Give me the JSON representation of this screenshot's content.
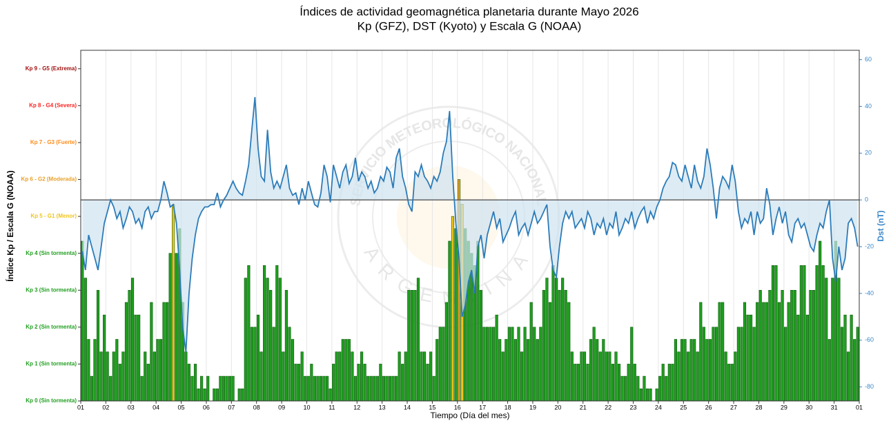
{
  "chart_data": {
    "type": "combo",
    "title": "Índices de actividad geomagnética planetaria durante Mayo 2026",
    "subtitle": "Kp (GFZ), DST (Kyoto) y Escala G (NOAA)",
    "xlabel": "Tiempo (Día del mes)",
    "ylabel": "Índice Kp / Escala G (NOAA)",
    "y2label": "Dst (nT)",
    "watermark": [
      "SERVICIO METEOROLÓGICO NACIONAL",
      "ARGENTINA"
    ],
    "xlim": [
      0,
      31
    ],
    "xticks": [
      {
        "value": 0,
        "label": "01"
      },
      {
        "value": 1,
        "label": "02"
      },
      {
        "value": 2,
        "label": "03"
      },
      {
        "value": 3,
        "label": "04"
      },
      {
        "value": 4,
        "label": "05"
      },
      {
        "value": 5,
        "label": "06"
      },
      {
        "value": 6,
        "label": "07"
      },
      {
        "value": 7,
        "label": "08"
      },
      {
        "value": 8,
        "label": "09"
      },
      {
        "value": 9,
        "label": "10"
      },
      {
        "value": 10,
        "label": "11"
      },
      {
        "value": 11,
        "label": "12"
      },
      {
        "value": 12,
        "label": "13"
      },
      {
        "value": 13,
        "label": "14"
      },
      {
        "value": 14,
        "label": "15"
      },
      {
        "value": 15,
        "label": "16"
      },
      {
        "value": 16,
        "label": "17"
      },
      {
        "value": 17,
        "label": "18"
      },
      {
        "value": 18,
        "label": "19"
      },
      {
        "value": 19,
        "label": "20"
      },
      {
        "value": 20,
        "label": "21"
      },
      {
        "value": 21,
        "label": "22"
      },
      {
        "value": 22,
        "label": "23"
      },
      {
        "value": 23,
        "label": "24"
      },
      {
        "value": 24,
        "label": "25"
      },
      {
        "value": 25,
        "label": "26"
      },
      {
        "value": 26,
        "label": "27"
      },
      {
        "value": 27,
        "label": "28"
      },
      {
        "value": 28,
        "label": "29"
      },
      {
        "value": 29,
        "label": "30"
      },
      {
        "value": 30,
        "label": "31"
      },
      {
        "value": 31,
        "label": "01"
      }
    ],
    "ylim": [
      0,
      9.5
    ],
    "yticks": [
      {
        "value": 0,
        "label": "Kp 0 (Sin tormenta)",
        "color": "#1f9e1f"
      },
      {
        "value": 1,
        "label": "Kp 1 (Sin tormenta)",
        "color": "#1f9e1f"
      },
      {
        "value": 2,
        "label": "Kp 2 (Sin tormenta)",
        "color": "#1f9e1f"
      },
      {
        "value": 3,
        "label": "Kp 3 (Sin tormenta)",
        "color": "#1f9e1f"
      },
      {
        "value": 4,
        "label": "Kp 4 (Sin tormenta)",
        "color": "#1f9e1f"
      },
      {
        "value": 5,
        "label": "Kp 5 - G1 (Menor)",
        "color": "#f0c419"
      },
      {
        "value": 6,
        "label": "Kp 6 - G2 (Moderada)",
        "color": "#e8a02a"
      },
      {
        "value": 7,
        "label": "Kp 7 - G3 (Fuerte)",
        "color": "#ff8c1a"
      },
      {
        "value": 8,
        "label": "Kp 8 - G4 (Severa)",
        "color": "#ff2222"
      },
      {
        "value": 9,
        "label": "Kp 9 - G5 (Extrema)",
        "color": "#a01010"
      }
    ],
    "y2lim": [
      -86,
      64
    ],
    "y2ticks": [
      -80,
      -60,
      -40,
      -20,
      0,
      20,
      40,
      60
    ],
    "y2color": "#3a87c8",
    "grid": true,
    "series": [
      {
        "type": "bar",
        "edgecolor": "#0d5a0d",
        "values": [
          4.33,
          3.33,
          1.67,
          0.67,
          1.67,
          3,
          1.33,
          2.33,
          1.33,
          0.67,
          1.33,
          1.67,
          1,
          1.33,
          2.67,
          3,
          3.33,
          2.33,
          2.33,
          0.67,
          1.33,
          1,
          2.67,
          1.33,
          1.67,
          1.67,
          2.67,
          2.67,
          4,
          5.33,
          4,
          4.67,
          2.67,
          1.33,
          1,
          0.67,
          1,
          0.33,
          0.67,
          0.33,
          0.67,
          0,
          0.33,
          0.33,
          0.67,
          0.67,
          0.67,
          0.67,
          0.67,
          0,
          0.33,
          0.33,
          3.33,
          3.67,
          2,
          2,
          2.33,
          1.33,
          3.67,
          3.33,
          3,
          2,
          3.67,
          3.33,
          1.33,
          3,
          2,
          1.67,
          1,
          1,
          1.33,
          0.67,
          0.67,
          1,
          0.67,
          0.67,
          0.67,
          0.67,
          0.67,
          0.33,
          1,
          1.33,
          1.33,
          1.67,
          1.67,
          1.67,
          1.33,
          0.67,
          1,
          1.33,
          1,
          0.67,
          0.67,
          0.67,
          0.67,
          1,
          0.67,
          0.67,
          0.67,
          0.67,
          0.67,
          1.33,
          1,
          1.33,
          3,
          3,
          3,
          3.33,
          1.33,
          1.33,
          1,
          1.33,
          0.67,
          1.67,
          2,
          2,
          2.67,
          4.33,
          5,
          4.67,
          6,
          5.33,
          4.67,
          4.33,
          4,
          3.67,
          4.33,
          3,
          2,
          2,
          2,
          2,
          2.33,
          1.67,
          1.33,
          1.67,
          2,
          2,
          1.67,
          2,
          1.33,
          2,
          1.67,
          2.67,
          2,
          1.67,
          2,
          3,
          3.33,
          2.67,
          3.67,
          3.33,
          3,
          3.33,
          3,
          2.67,
          1.33,
          1,
          1,
          1.33,
          1.33,
          1,
          1.67,
          2,
          1.67,
          1.33,
          1.67,
          1.33,
          1.33,
          1,
          1.33,
          1,
          0.67,
          0.67,
          1,
          2,
          1,
          0.67,
          0.33,
          0.67,
          0.33,
          0.33,
          0,
          0.33,
          0.67,
          1,
          0.67,
          1,
          1,
          1.67,
          1.33,
          1.67,
          1.67,
          1.33,
          1.67,
          1.67,
          1.33,
          2.67,
          2,
          1.67,
          1.67,
          2,
          2,
          2.67,
          2.67,
          1.33,
          1,
          1,
          1.33,
          2,
          2,
          2.67,
          2.33,
          2.33,
          2,
          2.67,
          3,
          2.67,
          2.67,
          3,
          3.67,
          3.67,
          2.67,
          3,
          2,
          2.67,
          3,
          3,
          2.33,
          3.67,
          3.67,
          2.33,
          3,
          3,
          3.67,
          4.33,
          3.67,
          3.33,
          1.67,
          3.33,
          4.33,
          3.33,
          2,
          2.33,
          1.33,
          2.33,
          1.67,
          2
        ]
      },
      {
        "type": "line",
        "axis": "y2",
        "color": "#2b7bb9",
        "fill": "#cfe2f0",
        "values": [
          -22,
          -30,
          -15,
          -20,
          -25,
          -30,
          -20,
          -10,
          -5,
          0,
          -3,
          -8,
          -5,
          -12,
          -8,
          -3,
          -5,
          -10,
          -8,
          -12,
          -5,
          -3,
          -8,
          -5,
          -5,
          0,
          8,
          3,
          -3,
          -2,
          -10,
          -30,
          -55,
          -65,
          -40,
          -25,
          -15,
          -8,
          -5,
          -3,
          -3,
          -2,
          -2,
          3,
          -3,
          0,
          2,
          5,
          8,
          5,
          3,
          2,
          8,
          15,
          30,
          44,
          22,
          10,
          8,
          30,
          12,
          5,
          8,
          5,
          10,
          15,
          5,
          2,
          3,
          -2,
          5,
          0,
          8,
          3,
          -2,
          -3,
          3,
          15,
          10,
          -1,
          15,
          10,
          5,
          12,
          15,
          7,
          10,
          18,
          8,
          12,
          10,
          5,
          8,
          3,
          5,
          10,
          8,
          14,
          12,
          5,
          18,
          22,
          10,
          5,
          -2,
          -5,
          12,
          10,
          15,
          10,
          8,
          5,
          10,
          8,
          12,
          20,
          25,
          38,
          10,
          -10,
          -25,
          -50,
          -45,
          -35,
          -30,
          -40,
          -20,
          -15,
          -25,
          -15,
          -10,
          -5,
          -12,
          -8,
          -18,
          -15,
          -12,
          -8,
          -5,
          -15,
          -12,
          -10,
          -15,
          -10,
          -5,
          -10,
          -8,
          -5,
          -2,
          -20,
          -30,
          -33,
          -20,
          -10,
          -5,
          -8,
          -5,
          -12,
          -10,
          -8,
          -12,
          -5,
          -8,
          -15,
          -10,
          -12,
          -8,
          -15,
          -10,
          -12,
          -5,
          -15,
          -12,
          -8,
          -10,
          -5,
          -12,
          -8,
          -5,
          -3,
          -10,
          -5,
          -8,
          -3,
          0,
          5,
          8,
          10,
          16,
          15,
          10,
          8,
          15,
          10,
          5,
          15,
          8,
          5,
          10,
          22,
          15,
          5,
          -8,
          5,
          10,
          8,
          5,
          15,
          8,
          -5,
          -12,
          -8,
          -10,
          -5,
          -15,
          -5,
          -10,
          -8,
          5,
          -2,
          -15,
          -8,
          -3,
          -10,
          -5,
          -15,
          -18,
          -10,
          -8,
          -12,
          -10,
          -15,
          -20,
          -22,
          -15,
          -10,
          -12,
          -5,
          0,
          -25,
          -35,
          -20,
          -30,
          -25,
          -10,
          -8,
          -12,
          -20
        ]
      }
    ]
  }
}
